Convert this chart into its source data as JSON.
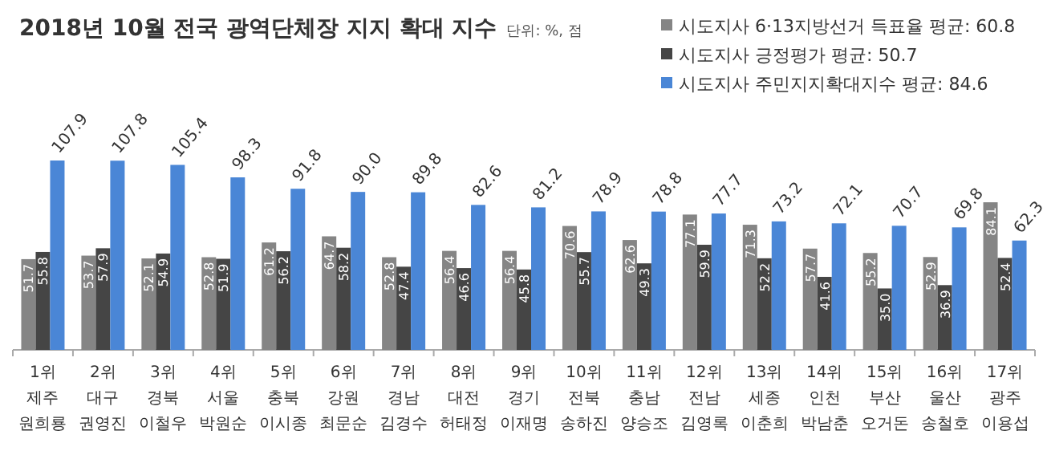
{
  "chart_data": {
    "type": "bar",
    "title": "2018년 10월 전국 광역단체장 지지 확대 지수",
    "subtitle": "단위: %, 점",
    "categories": [
      "1위\n제주\n원희룡",
      "2위\n대구\n권영진",
      "3위\n경북\n이철우",
      "4위\n서울\n박원순",
      "5위\n충북\n이시종",
      "6위\n강원\n최문순",
      "7위\n경남\n김경수",
      "8위\n대전\n허태정",
      "9위\n경기\n이재명",
      "10위\n전북\n송하진",
      "11위\n충남\n양승조",
      "12위\n전남\n김영록",
      "13위\n세종\n이춘희",
      "14위\n인천\n박남춘",
      "15위\n부산\n오거돈",
      "16위\n울산\n송철호",
      "17위\n광주\n이용섭"
    ],
    "series": [
      {
        "name": "시도지사 6·13지방선거 득표율 평균: 60.8",
        "color": "#858585",
        "values": [
          51.7,
          53.7,
          52.1,
          52.8,
          61.2,
          64.7,
          52.8,
          56.4,
          56.4,
          70.6,
          62.6,
          77.1,
          71.3,
          57.7,
          55.2,
          52.9,
          84.1
        ],
        "value_labels": [
          "51.7",
          "53.7",
          "52.1",
          "52.8",
          "61.2",
          "64.7",
          "52.8",
          "56.4",
          "56.4",
          "70.6",
          "62.6",
          "77.1",
          "71.3",
          "57.7",
          "55.2",
          "52.9",
          "84.1"
        ]
      },
      {
        "name": "시도지사 긍정평가 평균: 50.7",
        "color": "#454545",
        "values": [
          55.8,
          57.9,
          54.9,
          51.9,
          56.2,
          58.2,
          47.4,
          46.6,
          45.8,
          55.7,
          49.3,
          59.9,
          52.2,
          41.6,
          35.0,
          36.9,
          52.4
        ],
        "value_labels": [
          "55.8",
          "57.9",
          "54.9",
          "51.9",
          "56.2",
          "58.2",
          "47.4",
          "46.6",
          "45.8",
          "55.7",
          "49.3",
          "59.9",
          "52.2",
          "41.6",
          "35.0",
          "36.9",
          "52.4"
        ]
      },
      {
        "name": "시도지사 주민지지확대지수 평균: 84.6",
        "color": "#4a86d6",
        "values": [
          107.9,
          107.8,
          105.4,
          98.3,
          91.8,
          90.0,
          89.8,
          82.6,
          81.2,
          78.9,
          78.8,
          77.7,
          73.2,
          72.1,
          70.7,
          69.8,
          62.3
        ],
        "value_labels": [
          "107.9",
          "107.8",
          "105.4",
          "98.3",
          "91.8",
          "90.0",
          "89.8",
          "82.6",
          "81.2",
          "78.9",
          "78.8",
          "77.7",
          "73.2",
          "72.1",
          "70.7",
          "69.8",
          "62.3"
        ]
      }
    ],
    "legend": "top right"
  }
}
